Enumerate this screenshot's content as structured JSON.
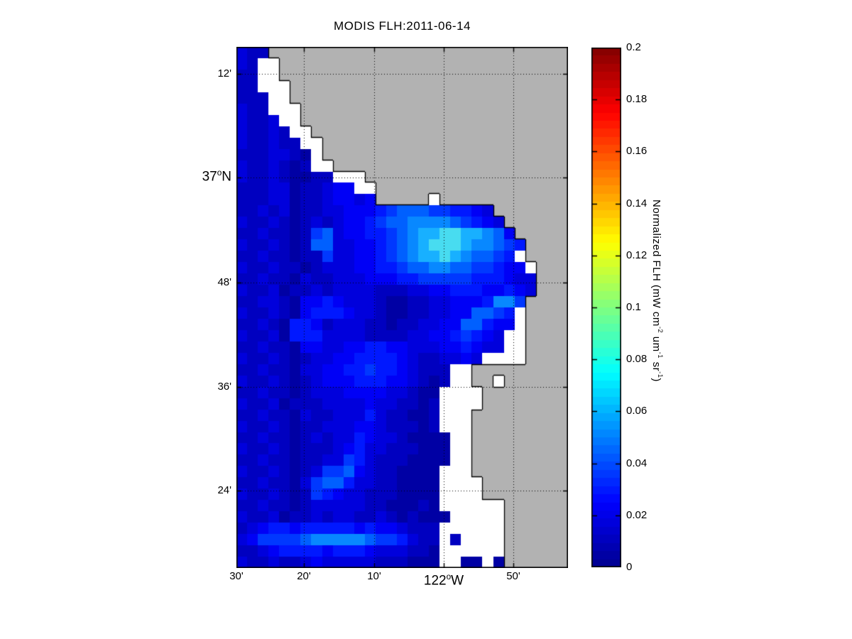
{
  "chart_data": {
    "type": "heatmap",
    "title": "MODIS FLH:2011-06-14",
    "x_axis": {
      "ticks": [
        {
          "main": "30'",
          "f": 0.0
        },
        {
          "main": "20'",
          "f": 0.2034
        },
        {
          "main": "10'",
          "f": 0.4154
        },
        {
          "main": "50'",
          "f": 0.8351
        }
      ],
      "degree_tick": {
        "main": "122",
        "sup": "o",
        "tail": "W",
        "f": 0.6253
      },
      "gridline_f": [
        0.2034,
        0.4154,
        0.6253,
        0.8351
      ]
    },
    "y_axis": {
      "ticks": [
        {
          "main": "12'",
          "f": 0.0518
        },
        {
          "main": "48'",
          "f": 0.4523
        },
        {
          "main": "36'",
          "f": 0.6526
        },
        {
          "main": "24'",
          "f": 0.8515
        }
      ],
      "degree_tick": {
        "main": "37",
        "sup": "o",
        "tail": "N",
        "f": 0.2507
      },
      "gridline_f": [
        0.0518,
        0.2507,
        0.4523,
        0.6526,
        0.8515
      ]
    },
    "colorbar": {
      "range": [
        0,
        0.2
      ],
      "bands": 64,
      "ticks": [
        {
          "label": "0.2",
          "value": 0.2
        },
        {
          "label": "0.18",
          "value": 0.18
        },
        {
          "label": "0.16",
          "value": 0.16
        },
        {
          "label": "0.14",
          "value": 0.14
        },
        {
          "label": "0.12",
          "value": 0.12
        },
        {
          "label": "0.1",
          "value": 0.1
        },
        {
          "label": "0.08",
          "value": 0.08
        },
        {
          "label": "0.06",
          "value": 0.06
        },
        {
          "label": "0.04",
          "value": 0.04
        },
        {
          "label": "0.02",
          "value": 0.02
        },
        {
          "label": "0",
          "value": 0.0
        }
      ],
      "jet_stops": [
        [
          0.0,
          "#00008F"
        ],
        [
          0.125,
          "#0000FF"
        ],
        [
          0.375,
          "#00FFFF"
        ],
        [
          0.625,
          "#FFFF00"
        ],
        [
          0.875,
          "#FF0000"
        ],
        [
          1.0,
          "#800000"
        ]
      ],
      "unit_label_parts": [
        {
          "t": "Normalized FLH (mW cm"
        },
        {
          "t": "-2",
          "sup": true
        },
        {
          "t": " um"
        },
        {
          "t": "-1",
          "sup": true
        },
        {
          "t": " sr"
        },
        {
          "t": "-1",
          "sup": true
        },
        {
          "t": ")"
        }
      ]
    },
    "map": {
      "legend": "grid chars: L=land, W=cloud/no-data, 0-9=normalized FLH level",
      "land_color": "#B2B2B2",
      "cloud_color": "#FFFFFF",
      "coast_color": "#000000",
      "gridline_color": "#000000",
      "palette": {
        "0": {
          "value": 0.006,
          "color": "#0000A4"
        },
        "1": {
          "value": 0.011,
          "color": "#0000C0"
        },
        "2": {
          "value": 0.017,
          "color": "#0000DC"
        },
        "3": {
          "value": 0.023,
          "color": "#0000F6"
        },
        "4": {
          "value": 0.029,
          "color": "#0018FF"
        },
        "5": {
          "value": 0.036,
          "color": "#0038FF"
        },
        "6": {
          "value": 0.043,
          "color": "#0060FF"
        },
        "7": {
          "value": 0.051,
          "color": "#0888FF"
        },
        "8": {
          "value": 0.06,
          "color": "#18B0FF"
        },
        "9": {
          "value": 0.078,
          "color": "#48DCF0"
        }
      },
      "grid": [
        "211LLLLLLLLLLLLLLLLLLLLLLLLLLLL",
        "21WWLLLLLLLLLLLLLLLLLLLLLLLLLLL",
        "11WWLLLLLLLLLLLLLLLLLLLLLLLLLLL",
        "11WWWLLLLLLLLLLLLLLLLLLLLLLLLLL",
        "111WWLLLLLLLLLLLLLLLLLLLLLLLLLL",
        "211WWWLLLLLLLLLLLLLLLLLLLLLLLLL",
        "2112WWLLLLLLLLLLLLLLLLLLLLLLLLL",
        "21121WWLLLLLLLLLLLLLLLLLLLLLLLL",
        "211211WWLLLLLLLLLLLLLLLLLLLLLLL",
        "1112210WLLLLLLLLLLLLLLLLLLLLLLL",
        "2112101WWLLLLLLLLLLLLLLLLLLLLLL",
        "211210011WWWLLLLLLLLLLLLLLLLLLL",
        "11122011233WWLLLLLLLLLLLLLLLLLL",
        "1112201123323LLLLLWLLLLLLLLLLLL",
        "112120112233345666554432LLLLLLL",
        "2112101212334566777765432LLLLLL",
        "11211015623344567889988763LLLLL",
        "211210166223345678999877654LLLL",
        "11211011522334567889876654WLLLL",
        "211211012223344566776655433WLLL",
        "1121102112223334455555444322LLL",
        "2112011212222111223344433432LLL",
        "112210334322210011223334775LLLL",
        "21121034443221001122336654WLLLL",
        "11210443122211011223366433WLLLL",
        "2112044422221111223345432WWLLLL",
        "1121103322334433222334322WWLLLL",
        "21121012233444432112232WWWWLLLL",
        "11211022334454432111WWLLLLLLLLL",
        "21121012333444332101WWLLWLLLLLL",
        "1121101222333322100WWWWLLLLLLLL",
        "2112011122223221101WWWWLLLLLLLL",
        "1121102112224211001WWWLLLLLLLLL",
        "2112101122233211101WWWLLLLLLLLL",
        "11211012122432210000WWLLLLLLLLL",
        "21121011123422111000WWLLLLLLLLL",
        "11211011225421110000WWLLLLLLLLL",
        "2112101255632110000WWWLLLLLLLLL",
        "1121102566422110000WWWWLLLLLLLL",
        "2112101543221110000WWWWLLLLLLLL",
        "1121101222221100010WWWWWWLLLLLL",
        "21120112122112101000WWWWWLLLLLL",
        "1234434444434332111WWWWWWLLLLLL",
        "2355556777776554211W1WWWWLLLLLL",
        "1123444434443222110WWWWWWLLLLLL",
        "2112112322222111000WW00W0LLLLLL"
      ]
    }
  }
}
